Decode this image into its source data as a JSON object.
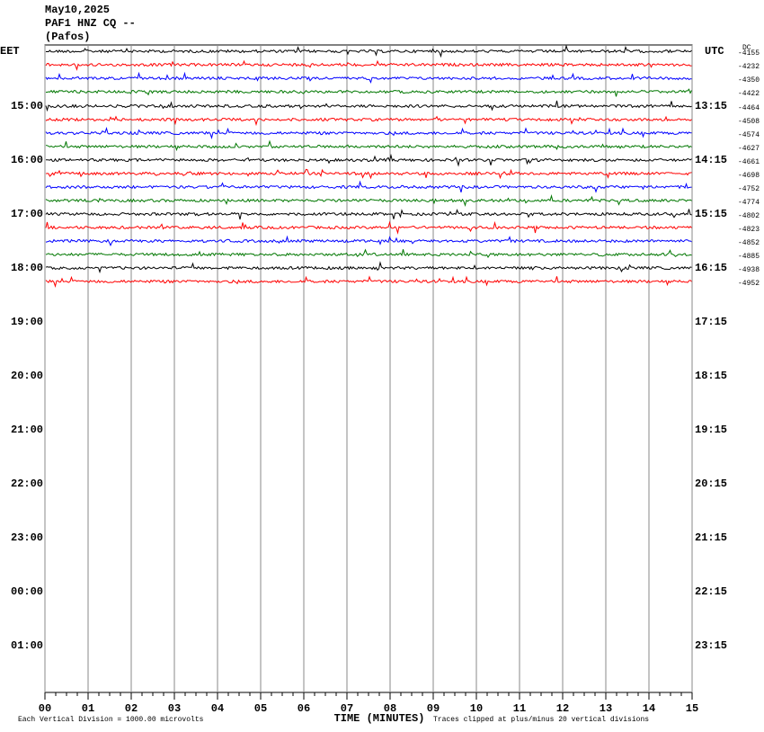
{
  "chart_data": {
    "type": "helicorder",
    "title": "May10,2025",
    "station": "PAF1 HNZ CQ --",
    "location": "(Pafos)",
    "left_timezone": "EET",
    "right_timezone": "UTC",
    "left_times": [
      "15:00",
      "16:00",
      "17:00",
      "18:00",
      "19:00",
      "20:00",
      "21:00",
      "22:00",
      "23:00",
      "00:00",
      "01:00"
    ],
    "right_times": [
      "13:15",
      "14:15",
      "15:15",
      "16:15",
      "17:15",
      "18:15",
      "19:15",
      "20:15",
      "21:15",
      "22:15",
      "23:15"
    ],
    "dc_label": "DC",
    "dc_offsets": [
      -4155,
      -4232,
      -4350,
      -4422,
      -4464,
      -4508,
      -4574,
      -4627,
      -4661,
      -4698,
      -4752,
      -4774,
      -4802,
      -4823,
      -4852,
      -4885,
      -4938,
      -4952
    ],
    "trace_colors": [
      "#000000",
      "#ff0000",
      "#0000ff",
      "#007700"
    ],
    "x_label": "TIME (MINUTES)",
    "scale_note": "Each Vertical Division = 1000.00 microvolts",
    "clip_note": "Traces clipped at plus/minus 20 vertical divisions",
    "xlim": [
      0,
      15
    ],
    "xticks": [
      {
        "value": 0,
        "label": "00"
      },
      {
        "value": 1,
        "label": "01"
      },
      {
        "value": 2,
        "label": "02"
      },
      {
        "value": 3,
        "label": "03"
      },
      {
        "value": 4,
        "label": "04"
      },
      {
        "value": 5,
        "label": "05"
      },
      {
        "value": 6,
        "label": "06"
      },
      {
        "value": 7,
        "label": "07"
      },
      {
        "value": 8,
        "label": "08"
      },
      {
        "value": 9,
        "label": "09"
      },
      {
        "value": 10,
        "label": "10"
      },
      {
        "value": 11,
        "label": "11"
      },
      {
        "value": 12,
        "label": "12"
      },
      {
        "value": 13,
        "label": "13"
      },
      {
        "value": 14,
        "label": "14"
      },
      {
        "value": 15,
        "label": "15"
      }
    ],
    "grid": true
  }
}
